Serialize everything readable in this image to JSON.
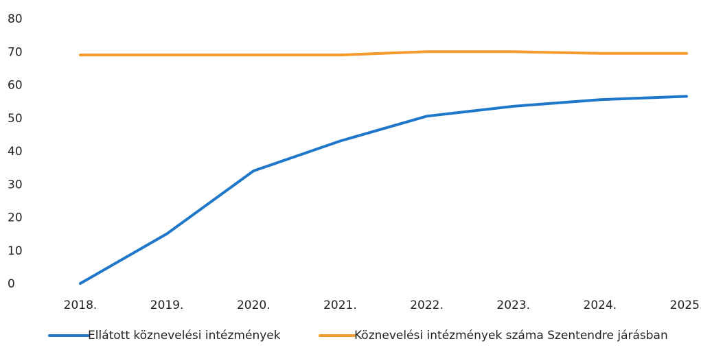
{
  "chart_data": {
    "type": "line",
    "categories": [
      "2018.",
      "2019.",
      "2020.",
      "2021.",
      "2022.",
      "2023.",
      "2024.",
      "2025."
    ],
    "series": [
      {
        "name": "Ellátott köznevelési intézmények",
        "color": "#1f77c9",
        "values": [
          0,
          15,
          34,
          43,
          50.5,
          53.5,
          55.5,
          56.5
        ]
      },
      {
        "name": "Köznevelési intézmények száma Szentendre járásban",
        "color": "#f59a2c",
        "values": [
          69,
          69,
          69,
          69,
          70,
          70,
          69.5,
          69.5
        ]
      }
    ],
    "yticks": [
      "0",
      "10",
      "20",
      "30",
      "40",
      "50",
      "60",
      "70",
      "80"
    ],
    "ylim": [
      0,
      80
    ],
    "grid": false,
    "legend_position": "bottom"
  }
}
